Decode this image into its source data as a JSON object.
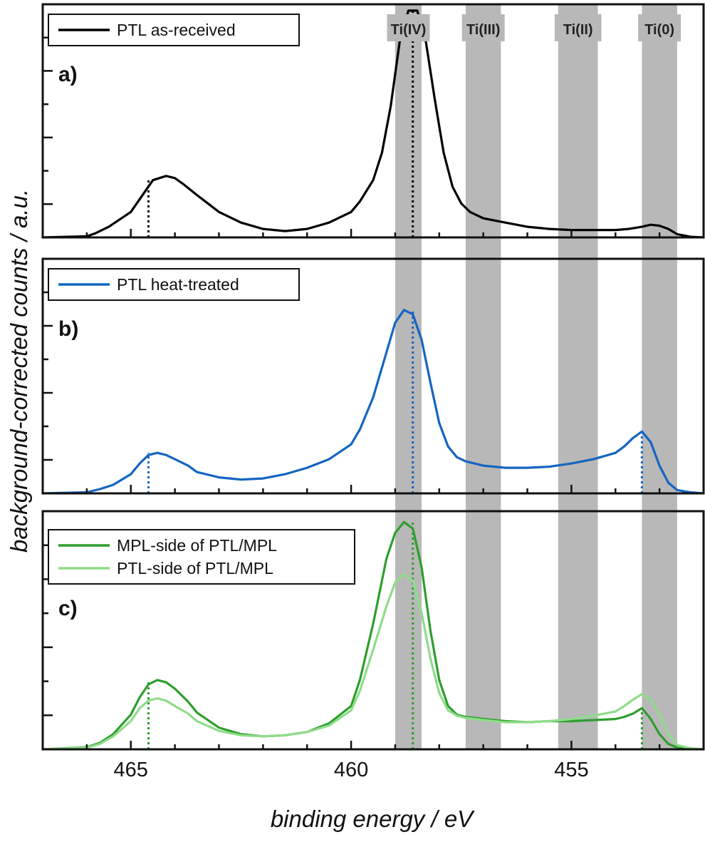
{
  "chart_data": {
    "type": "line",
    "xlabel": "binding energy  /  eV",
    "ylabel": "background-corrected counts  /  a.u.",
    "xlim": [
      467.0,
      452.0
    ],
    "x_reversed": true,
    "xticks": [
      465,
      460,
      455
    ],
    "shared_x": true,
    "grid": false,
    "region_bands": [
      {
        "label": "Ti(IV)",
        "x_range": [
          459.0,
          458.4
        ]
      },
      {
        "label": "Ti(III)",
        "x_range": [
          457.4,
          456.6
        ]
      },
      {
        "label": "Ti(II)",
        "x_range": [
          455.3,
          454.4
        ]
      },
      {
        "label": "Ti(0)",
        "x_range": [
          453.4,
          452.6
        ]
      }
    ],
    "panels": [
      {
        "label": "a)",
        "legend_position": "top-left",
        "ylim": [
          0,
          1.1
        ],
        "series": [
          {
            "name": "PTL as-received",
            "color": "#000000",
            "x": [
              467.0,
              466.0,
              465.8,
              465.5,
              465.0,
              464.7,
              464.5,
              464.2,
              464.0,
              463.8,
              463.5,
              463.0,
              462.5,
              462.0,
              461.5,
              461.0,
              460.5,
              460.0,
              459.8,
              459.5,
              459.3,
              459.1,
              458.9,
              458.7,
              458.5,
              458.3,
              458.1,
              457.9,
              457.7,
              457.5,
              457.3,
              457.0,
              456.5,
              456.0,
              455.5,
              455.0,
              454.5,
              454.0,
              453.7,
              453.4,
              453.2,
              453.0,
              452.8,
              452.6,
              452.3,
              452.0
            ],
            "y": [
              0.0,
              0.005,
              0.02,
              0.05,
              0.12,
              0.21,
              0.27,
              0.29,
              0.28,
              0.25,
              0.2,
              0.12,
              0.07,
              0.04,
              0.03,
              0.04,
              0.07,
              0.12,
              0.17,
              0.27,
              0.4,
              0.62,
              0.92,
              1.07,
              1.07,
              0.92,
              0.65,
              0.4,
              0.24,
              0.16,
              0.12,
              0.09,
              0.07,
              0.05,
              0.04,
              0.035,
              0.035,
              0.035,
              0.04,
              0.05,
              0.06,
              0.055,
              0.04,
              0.015,
              0.003,
              0.0
            ]
          }
        ],
        "peak_markers": [
          {
            "x": 464.6,
            "y": 0.28,
            "style": "dotted",
            "color": "#000000"
          },
          {
            "x": 458.6,
            "y": 1.07,
            "style": "dotted",
            "color": "#000000"
          }
        ]
      },
      {
        "label": "b)",
        "legend_position": "top-left",
        "ylim": [
          0,
          1.1
        ],
        "series": [
          {
            "name": "PTL heat-treated",
            "color": "#1565c0",
            "x": [
              467.0,
              466.0,
              465.7,
              465.4,
              465.0,
              464.8,
              464.6,
              464.4,
              464.2,
              464.0,
              463.7,
              463.5,
              463.0,
              462.5,
              462.0,
              461.5,
              461.0,
              460.5,
              460.0,
              459.8,
              459.5,
              459.2,
              459.0,
              458.8,
              458.6,
              458.4,
              458.2,
              458.0,
              457.8,
              457.6,
              457.4,
              457.0,
              456.5,
              456.0,
              455.5,
              455.0,
              454.5,
              454.0,
              453.8,
              453.6,
              453.4,
              453.2,
              453.0,
              452.8,
              452.6,
              452.3,
              452.0
            ],
            "y": [
              0.0,
              0.005,
              0.02,
              0.04,
              0.09,
              0.14,
              0.18,
              0.19,
              0.18,
              0.16,
              0.13,
              0.1,
              0.075,
              0.065,
              0.07,
              0.09,
              0.12,
              0.16,
              0.23,
              0.3,
              0.45,
              0.66,
              0.8,
              0.86,
              0.84,
              0.72,
              0.52,
              0.33,
              0.22,
              0.17,
              0.15,
              0.13,
              0.12,
              0.12,
              0.125,
              0.14,
              0.16,
              0.19,
              0.22,
              0.26,
              0.29,
              0.24,
              0.13,
              0.05,
              0.015,
              0.005,
              0.0
            ]
          }
        ],
        "peak_markers": [
          {
            "x": 464.6,
            "y": 0.19,
            "style": "dotted",
            "color": "#1565c0"
          },
          {
            "x": 458.6,
            "y": 0.86,
            "style": "dotted",
            "color": "#1565c0"
          },
          {
            "x": 453.4,
            "y": 0.29,
            "style": "dotted",
            "color": "#1565c0"
          }
        ]
      },
      {
        "label": "c)",
        "legend_position": "top-left",
        "ylim": [
          0,
          1.1
        ],
        "series": [
          {
            "name": "MPL-side of PTL/MPL",
            "color": "#2e9e2e",
            "x": [
              467.0,
              466.0,
              465.7,
              465.4,
              465.0,
              464.8,
              464.6,
              464.4,
              464.2,
              464.0,
              463.7,
              463.5,
              463.0,
              462.5,
              462.0,
              461.5,
              461.0,
              460.5,
              460.0,
              459.8,
              459.5,
              459.2,
              459.0,
              458.8,
              458.6,
              458.4,
              458.2,
              458.0,
              457.8,
              457.6,
              457.4,
              457.0,
              456.5,
              456.0,
              455.5,
              455.0,
              454.5,
              454.0,
              453.8,
              453.6,
              453.4,
              453.2,
              453.0,
              452.8,
              452.6,
              452.3,
              452.0
            ],
            "y": [
              0.0,
              0.01,
              0.03,
              0.07,
              0.16,
              0.24,
              0.3,
              0.32,
              0.31,
              0.28,
              0.22,
              0.17,
              0.1,
              0.07,
              0.06,
              0.065,
              0.08,
              0.12,
              0.2,
              0.32,
              0.58,
              0.88,
              1.0,
              1.05,
              1.02,
              0.84,
              0.55,
              0.32,
              0.2,
              0.16,
              0.15,
              0.14,
              0.13,
              0.125,
              0.13,
              0.13,
              0.135,
              0.14,
              0.15,
              0.165,
              0.19,
              0.14,
              0.07,
              0.025,
              0.008,
              0.002,
              0.0
            ]
          },
          {
            "name": "PTL-side of PTL/MPL",
            "color": "#8fdc8a",
            "x": [
              467.0,
              466.0,
              465.7,
              465.4,
              465.0,
              464.8,
              464.6,
              464.4,
              464.2,
              464.0,
              463.7,
              463.5,
              463.0,
              462.5,
              462.0,
              461.5,
              461.0,
              460.5,
              460.0,
              459.8,
              459.5,
              459.2,
              459.0,
              458.8,
              458.6,
              458.4,
              458.2,
              458.0,
              457.8,
              457.6,
              457.4,
              457.0,
              456.5,
              456.0,
              455.5,
              455.0,
              454.5,
              454.0,
              453.8,
              453.6,
              453.4,
              453.2,
              453.0,
              452.8,
              452.6,
              452.3,
              452.0
            ],
            "y": [
              0.0,
              0.008,
              0.025,
              0.06,
              0.13,
              0.19,
              0.225,
              0.235,
              0.225,
              0.2,
              0.165,
              0.13,
              0.085,
              0.065,
              0.06,
              0.065,
              0.08,
              0.11,
              0.18,
              0.27,
              0.46,
              0.66,
              0.77,
              0.81,
              0.78,
              0.63,
              0.42,
              0.26,
              0.18,
              0.155,
              0.145,
              0.135,
              0.125,
              0.125,
              0.13,
              0.14,
              0.155,
              0.175,
              0.2,
              0.23,
              0.255,
              0.23,
              0.16,
              0.07,
              0.02,
              0.005,
              0.0
            ]
          }
        ],
        "peak_markers": [
          {
            "x": 464.6,
            "y": 0.32,
            "style": "dotted",
            "color": "#2e9e2e"
          },
          {
            "x": 458.6,
            "y": 1.05,
            "style": "dotted",
            "color": "#2e9e2e"
          },
          {
            "x": 453.4,
            "y": 0.19,
            "style": "dotted",
            "color": "#2e9e2e"
          }
        ]
      }
    ]
  }
}
